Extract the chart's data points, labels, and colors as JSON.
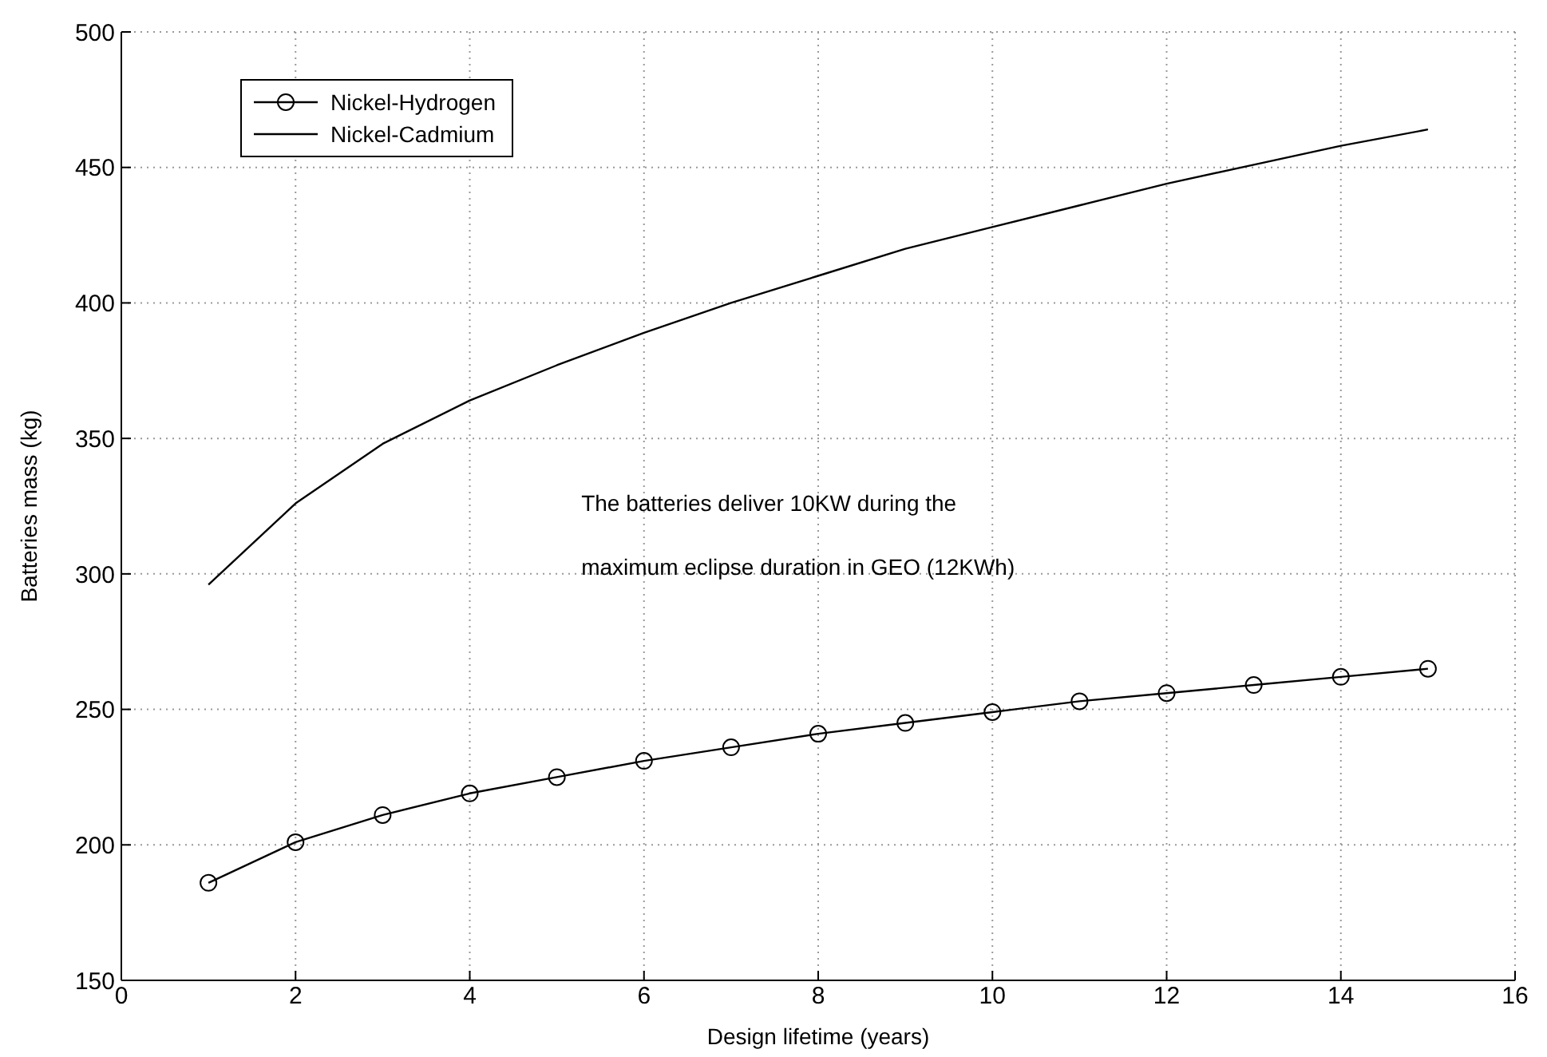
{
  "chart_data": {
    "type": "line",
    "xlabel": "Design lifetime (years)",
    "ylabel": "Batteries mass (kg)",
    "x": [
      1,
      2,
      3,
      4,
      5,
      6,
      7,
      8,
      9,
      10,
      11,
      12,
      13,
      14,
      15
    ],
    "series": [
      {
        "name": "Nickel-Hydrogen",
        "color": "#000000",
        "marker": "circle",
        "values": [
          186,
          201,
          211,
          219,
          225,
          231,
          236,
          241,
          245,
          249,
          253,
          256,
          259,
          262,
          265
        ]
      },
      {
        "name": "Nickel-Cadmium",
        "color": "#000000",
        "marker": "none",
        "values": [
          296,
          326,
          348,
          364,
          377,
          389,
          400,
          410,
          420,
          428,
          436,
          444,
          451,
          458,
          464
        ]
      }
    ],
    "xlim": [
      0,
      16
    ],
    "xticks": [
      0,
      2,
      4,
      6,
      8,
      10,
      12,
      14,
      16
    ],
    "ylim": [
      150,
      500
    ],
    "yticks": [
      150,
      200,
      250,
      300,
      350,
      400,
      450,
      500
    ],
    "grid": true,
    "legend": "top left",
    "annotations": [
      "The batteries deliver 10KW during the",
      "maximum eclipse duration in GEO (12KWh)"
    ]
  }
}
